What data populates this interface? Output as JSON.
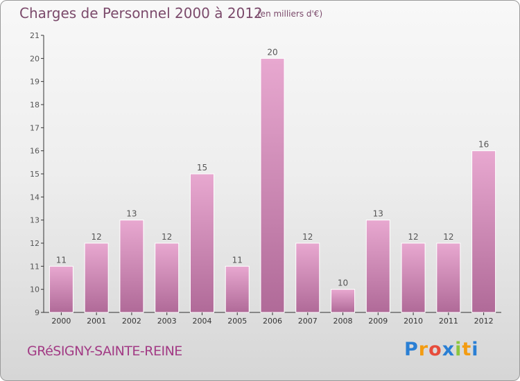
{
  "title": "Charges de Personnel 2000 à 2012",
  "subtitle": "(en milliers d'€)",
  "commune": "GRéSIGNY-SAINTE-REINE",
  "logo": {
    "letters": [
      "P",
      "r",
      "o",
      "x",
      "i",
      "t",
      "i"
    ],
    "colors": [
      "#2a7fd4",
      "#f39c12",
      "#e74c3c",
      "#2a7fd4",
      "#8cc63f",
      "#f39c12",
      "#2a7fd4"
    ]
  },
  "colors": {
    "bar_top": "#e8a8d0",
    "bar_bottom": "#b06a98",
    "text": "#7b4a6b",
    "axis": "#333333"
  },
  "chart_data": {
    "type": "bar",
    "categories": [
      "2000",
      "2001",
      "2002",
      "2003",
      "2004",
      "2005",
      "2006",
      "2007",
      "2008",
      "2009",
      "2010",
      "2011",
      "2012"
    ],
    "values": [
      11,
      12,
      13,
      12,
      15,
      11,
      20,
      12,
      10,
      13,
      12,
      12,
      16
    ],
    "data_labels": [
      "11",
      "12",
      "13",
      "12",
      "15",
      "11",
      "20",
      "12",
      "10",
      "13",
      "12",
      "12",
      "16"
    ],
    "yticks": [
      "9",
      "10",
      "11",
      "12",
      "13",
      "14",
      "15",
      "16",
      "17",
      "18",
      "19",
      "20",
      "21"
    ],
    "ylim": [
      9,
      21
    ],
    "xlabel": "",
    "ylabel": "",
    "grid": false,
    "legend": "none"
  }
}
